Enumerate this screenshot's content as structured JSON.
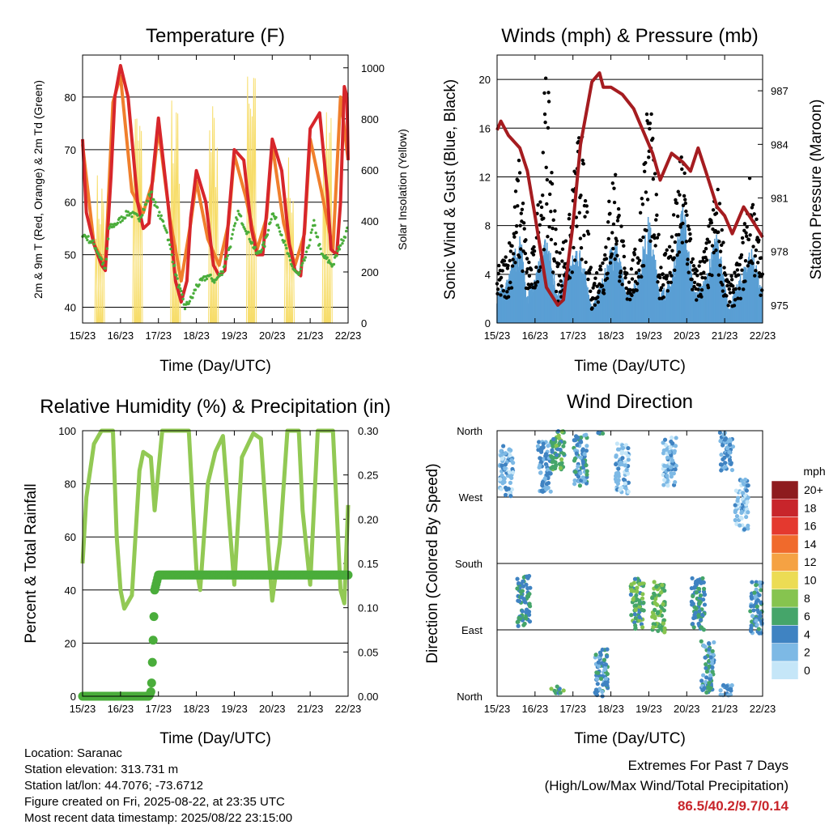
{
  "panels": {
    "temperature": {
      "title": "Temperature (F)",
      "ylabel_left": "2m & 9m T (Red, Orange) & 2m Td (Green)",
      "ylabel_right": "Solar Insolation (Yellow)",
      "xlabel": "Time (Day/UTC)"
    },
    "winds": {
      "title": "Winds (mph) & Pressure (mb)",
      "ylabel_left": "Sonic Wind & Gust (Blue, Black)",
      "ylabel_right": "Station Pressure (Maroon)",
      "xlabel": "Time (Day/UTC)"
    },
    "humidity": {
      "title": "Relative Humidity (%) & Precipitation (in)",
      "ylabel_left": "Percent & Total Rainfall",
      "xlabel": "Time (Day/UTC)"
    },
    "direction": {
      "title": "Wind Direction",
      "ylabel_left": "Direction (Colored By Speed)",
      "xlabel": "Time (Day/UTC)",
      "legend_title": "mph"
    }
  },
  "info": {
    "location": "Location: Saranac",
    "elevation": "Station elevation: 313.731 m",
    "latlon": "Station lat/lon: 44.7076; -73.6712",
    "created": "Figure created on Fri, 2025-08-22, at 23:35 UTC",
    "recent": "Most recent data timestamp: 2025/08/22 23:15:00"
  },
  "extremes": {
    "line1": "Extremes For Past 7 Days",
    "line2": "(High/Low/Max Wind/Total Precipitation)",
    "values": "86.5/40.2/9.7/0.14"
  },
  "colors": {
    "temp_2m": "#d7262b",
    "temp_9m": "#f07f2c",
    "dewpoint": "#4aad3b",
    "solar": "#f7dd6a",
    "wind": "#5a9fd4",
    "gust": "#000000",
    "pressure": "#a51c20",
    "rh": "#92c954",
    "precip": "#4aad3b"
  },
  "chart_data": [
    {
      "type": "line",
      "panel": "temperature",
      "x_ticks": [
        "15/23",
        "16/23",
        "17/23",
        "18/23",
        "19/23",
        "20/23",
        "21/23",
        "22/23"
      ],
      "x_range_days": [
        0,
        7
      ],
      "ylim_left": [
        37,
        88
      ],
      "yticks_left": [
        40,
        50,
        60,
        70,
        80
      ],
      "ylim_right": [
        0,
        1050
      ],
      "yticks_right": [
        0,
        200,
        400,
        600,
        800,
        1000
      ],
      "series": [
        {
          "name": "2m T",
          "color": "#d7262b",
          "x": [
            0,
            0.1,
            0.3,
            0.5,
            0.6,
            0.75,
            0.85,
            1.0,
            1.2,
            1.45,
            1.6,
            1.75,
            1.85,
            2.0,
            2.25,
            2.45,
            2.6,
            2.75,
            2.85,
            3.0,
            3.25,
            3.45,
            3.6,
            3.75,
            3.85,
            4.0,
            4.25,
            4.45,
            4.6,
            4.75,
            4.85,
            5.0,
            5.25,
            5.45,
            5.6,
            5.75,
            5.85,
            6.0,
            6.25,
            6.45,
            6.55,
            6.7,
            6.8,
            6.9,
            6.97,
            7.0
          ],
          "y": [
            72,
            58,
            52,
            48,
            47,
            65,
            80,
            86,
            80,
            60,
            55,
            56,
            65,
            76,
            60,
            45,
            41,
            45,
            57,
            66,
            60,
            48,
            46,
            47,
            57,
            70,
            68,
            55,
            50,
            50,
            58,
            72,
            66,
            52,
            47,
            46,
            55,
            74,
            77,
            62,
            51,
            50,
            60,
            82,
            80,
            68
          ]
        },
        {
          "name": "9m T",
          "color": "#f07f2c",
          "x": [
            0,
            0.3,
            0.6,
            0.8,
            1.0,
            1.3,
            1.6,
            1.85,
            2.0,
            2.3,
            2.6,
            2.85,
            3.0,
            3.3,
            3.6,
            3.85,
            4.0,
            4.3,
            4.6,
            4.85,
            5.0,
            5.3,
            5.6,
            5.85,
            6.0,
            6.3,
            6.6,
            6.8,
            7.0
          ],
          "y": [
            71,
            52,
            48,
            79,
            84,
            62,
            58,
            64,
            74,
            57,
            45,
            56,
            64,
            53,
            48,
            56,
            69,
            61,
            51,
            57,
            71,
            56,
            48,
            54,
            72,
            62,
            51,
            80,
            68
          ]
        },
        {
          "name": "2m Td",
          "color": "#4aad3b",
          "x": [
            0,
            0.3,
            0.5,
            0.6,
            0.7,
            0.9,
            1.2,
            1.5,
            1.7,
            1.8,
            2.0,
            2.2,
            2.5,
            2.7,
            2.9,
            3.0,
            3.3,
            3.5,
            3.7,
            3.9,
            4.1,
            4.3,
            4.6,
            4.8,
            5.0,
            5.2,
            5.5,
            5.7,
            5.9,
            6.1,
            6.3,
            6.6,
            6.8,
            7.0
          ],
          "y": [
            54,
            52,
            49,
            47,
            55,
            56,
            58,
            57,
            60,
            62,
            58,
            55,
            45,
            40,
            42,
            44,
            46,
            45,
            47,
            52,
            58,
            55,
            50,
            52,
            58,
            55,
            48,
            46,
            50,
            56,
            50,
            48,
            52,
            55
          ]
        },
        {
          "name": "Solar",
          "color": "#f7dd6a",
          "x": [
            0.2,
            0.45,
            0.6,
            0.75,
            0.85,
            1.2,
            1.45,
            1.6,
            1.65,
            1.7,
            1.8,
            2.2,
            2.45,
            2.6,
            2.8,
            3.2,
            3.45,
            3.6,
            3.8,
            4.2,
            4.45,
            4.6,
            4.8,
            5.2,
            5.45,
            5.6,
            5.8,
            6.2,
            6.45,
            6.6,
            6.8
          ],
          "y": [
            0,
            600,
            0,
            0,
            0,
            0,
            900,
            0,
            0,
            0,
            0,
            0,
            950,
            0,
            0,
            0,
            880,
            0,
            0,
            0,
            1000,
            0,
            0,
            0,
            700,
            0,
            0,
            0,
            850,
            0,
            0
          ]
        }
      ]
    },
    {
      "type": "scatter",
      "panel": "winds",
      "x_ticks": [
        "15/23",
        "16/23",
        "17/23",
        "18/23",
        "19/23",
        "20/23",
        "21/23",
        "22/23"
      ],
      "x_range_days": [
        0,
        7
      ],
      "ylim_left": [
        0,
        22
      ],
      "yticks_left": [
        0,
        4,
        8,
        12,
        16,
        20
      ],
      "ylim_right": [
        974,
        989
      ],
      "yticks_right": [
        975,
        978,
        981,
        984,
        987
      ],
      "series": [
        {
          "name": "Sonic Wind",
          "color": "#5a9fd4",
          "x": [
            0,
            0.3,
            0.6,
            0.8,
            1.0,
            1.3,
            1.6,
            1.9,
            2.2,
            2.5,
            2.8,
            3.1,
            3.4,
            3.7,
            4.0,
            4.3,
            4.6,
            4.9,
            5.2,
            5.5,
            5.8,
            6.1,
            6.4,
            6.7,
            7.0
          ],
          "y": [
            2,
            3,
            6,
            2,
            3,
            6,
            2,
            4,
            5,
            1,
            3,
            6,
            2,
            3,
            7,
            2,
            3,
            8,
            2,
            3,
            6,
            1,
            3,
            5,
            2
          ]
        },
        {
          "name": "Gust",
          "color": "#000000",
          "x": [
            0,
            0.3,
            0.6,
            0.8,
            1.0,
            1.3,
            1.6,
            1.9,
            2.2,
            2.5,
            2.8,
            3.1,
            3.4,
            3.7,
            4.0,
            4.3,
            4.6,
            4.9,
            5.2,
            5.5,
            5.8,
            6.1,
            6.4,
            6.7,
            7.0
          ],
          "y": [
            4,
            6,
            13,
            5,
            6,
            20,
            5,
            8,
            16,
            3,
            6,
            13,
            4,
            6,
            19,
            5,
            7,
            14,
            4,
            6,
            11,
            3,
            5,
            12,
            4
          ]
        },
        {
          "name": "Pressure",
          "color": "#a51c20",
          "x": [
            0,
            0.1,
            0.3,
            0.6,
            0.8,
            1.0,
            1.3,
            1.6,
            1.75,
            2.0,
            2.2,
            2.5,
            2.7,
            2.8,
            3.0,
            3.3,
            3.6,
            3.9,
            4.1,
            4.3,
            4.6,
            4.9,
            5.1,
            5.3,
            5.5,
            5.8,
            6.0,
            6.2,
            6.5,
            6.8,
            7.0
          ],
          "y": [
            984.8,
            985.3,
            984.5,
            983.8,
            982.5,
            980.0,
            976.0,
            975.0,
            975.3,
            979.5,
            984.0,
            987.5,
            988.0,
            987.2,
            987.2,
            986.8,
            986.0,
            984.5,
            983.5,
            982.0,
            983.5,
            983.0,
            982.5,
            983.8,
            982.5,
            980.5,
            980.0,
            979.0,
            980.5,
            979.5,
            978.8
          ]
        }
      ]
    },
    {
      "type": "line",
      "panel": "humidity",
      "x_ticks": [
        "15/23",
        "16/23",
        "17/23",
        "18/23",
        "19/23",
        "20/23",
        "21/23",
        "22/23"
      ],
      "x_range_days": [
        0,
        7
      ],
      "ylim_left": [
        0,
        100
      ],
      "yticks_left": [
        0,
        20,
        40,
        60,
        80,
        100
      ],
      "ylim_right": [
        0,
        0.3
      ],
      "yticks_right": [
        "0.00",
        "0.05",
        "0.10",
        "0.15",
        "0.20",
        "0.25",
        "0.30"
      ],
      "series": [
        {
          "name": "RH",
          "color": "#92c954",
          "x": [
            0,
            0.1,
            0.3,
            0.5,
            0.7,
            0.8,
            0.9,
            1.0,
            1.1,
            1.3,
            1.5,
            1.6,
            1.8,
            1.9,
            2.1,
            2.5,
            2.8,
            3.0,
            3.1,
            3.3,
            3.5,
            3.7,
            3.9,
            4.0,
            4.2,
            4.5,
            4.7,
            4.9,
            5.0,
            5.2,
            5.4,
            5.7,
            5.8,
            6.0,
            6.2,
            6.3,
            6.6,
            6.8,
            6.9,
            7.0
          ],
          "y": [
            50,
            75,
            95,
            100,
            100,
            100,
            60,
            40,
            33,
            38,
            85,
            92,
            90,
            70,
            100,
            100,
            100,
            48,
            40,
            80,
            92,
            98,
            60,
            42,
            90,
            99,
            97,
            55,
            36,
            58,
            100,
            100,
            70,
            42,
            100,
            100,
            100,
            40,
            35,
            72
          ]
        },
        {
          "name": "Precipitation",
          "color": "#4aad3b",
          "x": [
            0,
            1.75,
            1.8,
            1.82,
            1.85,
            1.88,
            1.9,
            2.0,
            7.0
          ],
          "y": [
            0,
            0,
            0.005,
            0.015,
            0.05,
            0.09,
            0.12,
            0.137,
            0.137
          ]
        }
      ]
    },
    {
      "type": "scatter",
      "panel": "direction",
      "x_ticks": [
        "15/23",
        "16/23",
        "17/23",
        "18/23",
        "19/23",
        "20/23",
        "21/23",
        "22/23"
      ],
      "x_range_days": [
        0,
        7
      ],
      "y_ticks": [
        "North",
        "West",
        "South",
        "East",
        "North"
      ],
      "ylim": [
        0,
        360
      ],
      "legend_labels": [
        "20+",
        "18",
        "16",
        "14",
        "12",
        "10",
        "8",
        "6",
        "4",
        "2",
        "0"
      ],
      "legend_colors": [
        "#8e1b1e",
        "#c8252b",
        "#e4392f",
        "#f06a2c",
        "#f5a243",
        "#ecdc54",
        "#86c44f",
        "#45a56a",
        "#3f83c2",
        "#7db9e5",
        "#c5e6f8"
      ],
      "clusters": [
        {
          "x": 0.25,
          "dir": 305,
          "speed": 2
        },
        {
          "x": 0.7,
          "dir": 130,
          "speed": 5
        },
        {
          "x": 1.25,
          "dir": 310,
          "speed": 3
        },
        {
          "x": 1.6,
          "dir": 340,
          "speed": 6
        },
        {
          "x": 2.2,
          "dir": 320,
          "speed": 4
        },
        {
          "x": 2.75,
          "dir": 30,
          "speed": 4
        },
        {
          "x": 3.3,
          "dir": 310,
          "speed": 2
        },
        {
          "x": 3.7,
          "dir": 125,
          "speed": 6
        },
        {
          "x": 4.25,
          "dir": 120,
          "speed": 7
        },
        {
          "x": 4.55,
          "dir": 320,
          "speed": 2
        },
        {
          "x": 5.3,
          "dir": 125,
          "speed": 5
        },
        {
          "x": 5.55,
          "dir": 40,
          "speed": 4
        },
        {
          "x": 6.05,
          "dir": 340,
          "speed": 3
        },
        {
          "x": 6.45,
          "dir": 260,
          "speed": 2
        },
        {
          "x": 6.85,
          "dir": 120,
          "speed": 4
        }
      ]
    }
  ]
}
